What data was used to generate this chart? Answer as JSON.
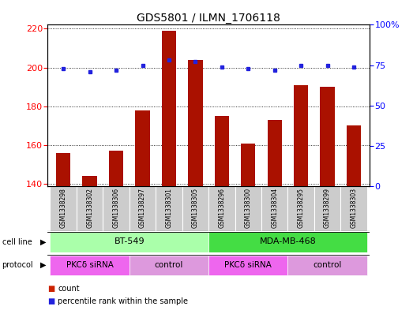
{
  "title": "GDS5801 / ILMN_1706118",
  "samples": [
    "GSM1338298",
    "GSM1338302",
    "GSM1338306",
    "GSM1338297",
    "GSM1338301",
    "GSM1338305",
    "GSM1338296",
    "GSM1338300",
    "GSM1338304",
    "GSM1338295",
    "GSM1338299",
    "GSM1338303"
  ],
  "counts": [
    156,
    144,
    157,
    178,
    219,
    204,
    175,
    161,
    173,
    191,
    190,
    170
  ],
  "percentiles": [
    73,
    71,
    72,
    75,
    78,
    77,
    74,
    73,
    72,
    75,
    75,
    74
  ],
  "ylim_left": [
    139,
    222
  ],
  "ylim_right": [
    0,
    100
  ],
  "yticks_left": [
    140,
    160,
    180,
    200,
    220
  ],
  "yticks_right": [
    0,
    25,
    50,
    75,
    100
  ],
  "bar_color": "#aa1100",
  "dot_color": "#2222dd",
  "grid_color": "#000000",
  "cell_line_groups": [
    {
      "label": "BT-549",
      "start": 0,
      "end": 5,
      "color": "#aaffaa"
    },
    {
      "label": "MDA-MB-468",
      "start": 6,
      "end": 11,
      "color": "#44dd44"
    }
  ],
  "protocol_groups": [
    {
      "label": "PKCδ siRNA",
      "start": 0,
      "end": 2,
      "color": "#ee66ee"
    },
    {
      "label": "control",
      "start": 3,
      "end": 5,
      "color": "#dd99dd"
    },
    {
      "label": "PKCδ siRNA",
      "start": 6,
      "end": 8,
      "color": "#ee66ee"
    },
    {
      "label": "control",
      "start": 9,
      "end": 11,
      "color": "#dd99dd"
    }
  ],
  "legend_count_color": "#cc2200",
  "legend_pct_color": "#2222dd",
  "right_ytick_labels": [
    "0",
    "25",
    "50",
    "75",
    "100%"
  ]
}
